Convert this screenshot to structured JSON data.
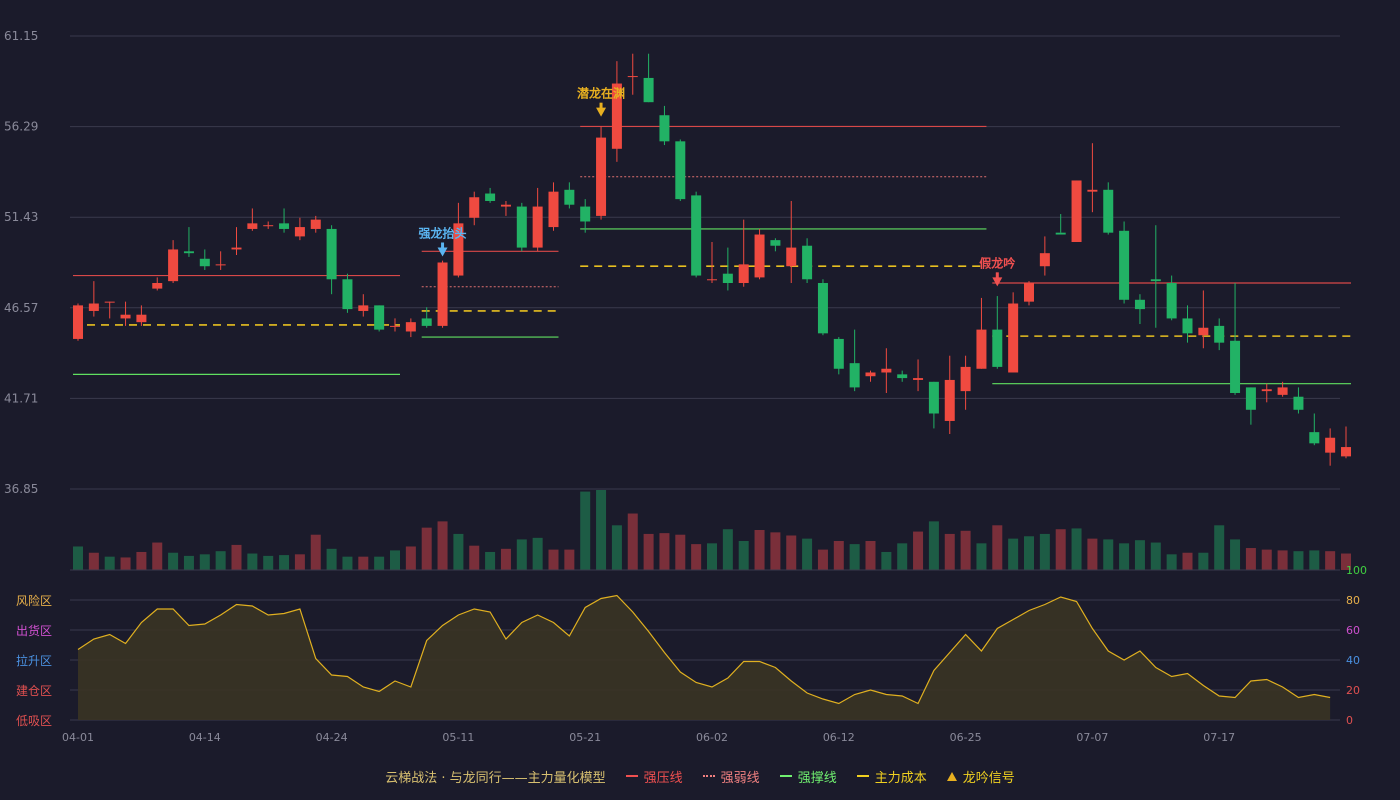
{
  "chart_data": {
    "type": "candlestick",
    "price_axis": {
      "ticks": [
        61.15,
        56.29,
        51.43,
        46.57,
        41.71,
        36.85
      ],
      "min": 36.85,
      "max": 61.15
    },
    "indicator_axis": {
      "ticks": [
        100,
        80,
        60,
        40,
        20,
        0
      ],
      "min": 0,
      "max": 100
    },
    "zones": [
      {
        "label": "风险区",
        "value": 80,
        "color": "#e8b04a"
      },
      {
        "label": "出货区",
        "value": 60,
        "color": "#d050d0"
      },
      {
        "label": "拉升区",
        "value": 40,
        "color": "#4a90e0"
      },
      {
        "label": "建仓区",
        "value": 20,
        "color": "#e05050"
      },
      {
        "label": "低吸区",
        "value": 0,
        "color": "#e05050"
      }
    ],
    "date_labels": [
      {
        "index": 0,
        "label": "04-01"
      },
      {
        "index": 8,
        "label": "04-14"
      },
      {
        "index": 16,
        "label": "04-24"
      },
      {
        "index": 24,
        "label": "05-11"
      },
      {
        "index": 32,
        "label": "05-21"
      },
      {
        "index": 40,
        "label": "06-02"
      },
      {
        "index": 48,
        "label": "06-12"
      },
      {
        "index": 56,
        "label": "06-25"
      },
      {
        "index": 64,
        "label": "07-07"
      },
      {
        "index": 72,
        "label": "07-17"
      }
    ],
    "candles": [
      [
        44.9,
        46.7,
        44.8,
        46.8
      ],
      [
        46.4,
        46.8,
        46.1,
        48.0
      ],
      [
        46.9,
        46.9,
        46.0,
        46.9
      ],
      [
        46.0,
        46.2,
        45.6,
        46.9
      ],
      [
        45.8,
        46.2,
        45.6,
        46.7
      ],
      [
        47.6,
        47.9,
        47.5,
        48.2
      ],
      [
        48.0,
        49.7,
        47.9,
        50.2
      ],
      [
        49.6,
        49.5,
        49.3,
        50.9
      ],
      [
        49.2,
        48.8,
        48.6,
        49.7
      ],
      [
        48.9,
        48.9,
        48.6,
        49.6
      ],
      [
        49.7,
        49.8,
        49.4,
        50.9
      ],
      [
        50.8,
        51.1,
        50.7,
        51.9
      ],
      [
        51.0,
        51.0,
        50.8,
        51.2
      ],
      [
        51.1,
        50.8,
        50.6,
        51.9
      ],
      [
        50.4,
        50.9,
        50.2,
        51.4
      ],
      [
        50.8,
        51.3,
        50.6,
        51.5
      ],
      [
        50.8,
        48.1,
        47.3,
        51.0
      ],
      [
        48.1,
        46.5,
        46.3,
        48.4
      ],
      [
        46.4,
        46.7,
        46.1,
        47.3
      ],
      [
        46.7,
        45.4,
        45.3,
        46.7
      ],
      [
        45.6,
        45.6,
        45.3,
        46.0
      ],
      [
        45.3,
        45.8,
        45.0,
        46.0
      ],
      [
        46.0,
        45.6,
        45.5,
        46.6
      ],
      [
        45.6,
        49.0,
        45.5,
        49.1
      ],
      [
        48.3,
        51.1,
        48.2,
        52.2
      ],
      [
        51.4,
        52.5,
        51.0,
        52.8
      ],
      [
        52.7,
        52.3,
        52.2,
        53.0
      ],
      [
        52.0,
        52.1,
        51.5,
        52.3
      ],
      [
        52.0,
        49.8,
        49.6,
        52.2
      ],
      [
        49.8,
        52.0,
        49.6,
        53.0
      ],
      [
        50.9,
        52.8,
        50.7,
        53.3
      ],
      [
        52.9,
        52.1,
        51.9,
        53.3
      ],
      [
        52.0,
        51.2,
        50.6,
        52.4
      ],
      [
        51.5,
        55.7,
        51.3,
        56.3
      ],
      [
        55.1,
        58.6,
        54.4,
        59.8
      ],
      [
        59.0,
        59.0,
        58.0,
        60.2
      ],
      [
        58.9,
        57.6,
        57.6,
        60.2
      ],
      [
        56.9,
        55.5,
        55.3,
        57.4
      ],
      [
        55.5,
        52.4,
        52.3,
        55.6
      ],
      [
        52.6,
        48.3,
        48.2,
        52.8
      ],
      [
        48.1,
        48.1,
        47.9,
        50.1
      ],
      [
        48.4,
        47.9,
        47.5,
        49.8
      ],
      [
        47.9,
        48.9,
        47.7,
        51.3
      ],
      [
        48.2,
        50.5,
        48.1,
        50.8
      ],
      [
        50.2,
        49.9,
        49.6,
        50.3
      ],
      [
        48.8,
        49.8,
        47.9,
        52.3
      ],
      [
        49.9,
        48.1,
        47.9,
        50.3
      ],
      [
        47.9,
        45.2,
        45.1,
        48.1
      ],
      [
        44.9,
        43.3,
        43.0,
        45.0
      ],
      [
        43.6,
        42.3,
        42.1,
        45.4
      ],
      [
        42.9,
        43.1,
        42.6,
        43.2
      ],
      [
        43.1,
        43.3,
        42.0,
        44.4
      ],
      [
        43.0,
        42.8,
        42.6,
        43.2
      ],
      [
        42.7,
        42.8,
        42.1,
        43.8
      ],
      [
        42.6,
        40.9,
        40.1,
        42.6
      ],
      [
        40.5,
        42.7,
        39.8,
        44.0
      ],
      [
        42.1,
        43.4,
        41.1,
        44.0
      ],
      [
        43.3,
        45.4,
        43.3,
        47.1
      ],
      [
        45.4,
        43.4,
        43.3,
        47.2
      ],
      [
        43.1,
        46.8,
        43.1,
        47.4
      ],
      [
        46.9,
        47.9,
        46.7,
        48.0
      ],
      [
        48.8,
        49.5,
        48.3,
        50.4
      ],
      [
        50.6,
        50.5,
        50.6,
        51.6
      ],
      [
        50.1,
        53.4,
        50.1,
        53.4
      ],
      [
        52.8,
        52.9,
        51.7,
        55.4
      ],
      [
        52.9,
        50.6,
        50.5,
        53.3
      ],
      [
        50.7,
        47.0,
        46.8,
        51.2
      ],
      [
        47.0,
        46.5,
        45.7,
        47.3
      ],
      [
        48.1,
        48.0,
        45.5,
        51.0
      ],
      [
        47.9,
        46.0,
        45.9,
        48.3
      ],
      [
        46.0,
        45.2,
        44.7,
        46.7
      ],
      [
        45.1,
        45.5,
        44.4,
        47.5
      ],
      [
        45.6,
        44.7,
        44.3,
        46.0
      ],
      [
        44.8,
        42.0,
        41.9,
        47.9
      ],
      [
        42.3,
        41.1,
        40.3,
        42.3
      ],
      [
        42.1,
        42.2,
        41.5,
        42.5
      ],
      [
        41.9,
        42.3,
        41.8,
        42.6
      ],
      [
        41.8,
        41.1,
        40.9,
        42.3
      ],
      [
        39.9,
        39.3,
        39.2,
        40.9
      ],
      [
        38.8,
        39.6,
        38.1,
        40.1
      ],
      [
        38.6,
        39.1,
        38.5,
        40.2
      ]
    ],
    "volume": [
      {
        "v": 30,
        "up": false
      },
      {
        "v": 22,
        "up": true
      },
      {
        "v": 17,
        "up": false
      },
      {
        "v": 16,
        "up": true
      },
      {
        "v": 23,
        "up": true
      },
      {
        "v": 35,
        "up": true
      },
      {
        "v": 22,
        "up": false
      },
      {
        "v": 18,
        "up": false
      },
      {
        "v": 20,
        "up": false
      },
      {
        "v": 24,
        "up": false
      },
      {
        "v": 32,
        "up": true
      },
      {
        "v": 21,
        "up": false
      },
      {
        "v": 18,
        "up": false
      },
      {
        "v": 19,
        "up": false
      },
      {
        "v": 20,
        "up": true
      },
      {
        "v": 45,
        "up": true
      },
      {
        "v": 27,
        "up": false
      },
      {
        "v": 17,
        "up": false
      },
      {
        "v": 17,
        "up": true
      },
      {
        "v": 17,
        "up": false
      },
      {
        "v": 25,
        "up": false
      },
      {
        "v": 30,
        "up": true
      },
      {
        "v": 54,
        "up": true
      },
      {
        "v": 62,
        "up": true
      },
      {
        "v": 46,
        "up": false
      },
      {
        "v": 31,
        "up": true
      },
      {
        "v": 23,
        "up": false
      },
      {
        "v": 27,
        "up": true
      },
      {
        "v": 39,
        "up": false
      },
      {
        "v": 41,
        "up": false
      },
      {
        "v": 26,
        "up": true
      },
      {
        "v": 26,
        "up": true
      },
      {
        "v": 100,
        "up": false
      },
      {
        "v": 102,
        "up": false
      },
      {
        "v": 57,
        "up": false
      },
      {
        "v": 72,
        "up": true
      },
      {
        "v": 46,
        "up": true
      },
      {
        "v": 47,
        "up": true
      },
      {
        "v": 45,
        "up": true
      },
      {
        "v": 33,
        "up": true
      },
      {
        "v": 34,
        "up": false
      },
      {
        "v": 52,
        "up": false
      },
      {
        "v": 37,
        "up": false
      },
      {
        "v": 51,
        "up": true
      },
      {
        "v": 48,
        "up": true
      },
      {
        "v": 44,
        "up": true
      },
      {
        "v": 40,
        "up": false
      },
      {
        "v": 26,
        "up": true
      },
      {
        "v": 37,
        "up": true
      },
      {
        "v": 33,
        "up": false
      },
      {
        "v": 37,
        "up": true
      },
      {
        "v": 23,
        "up": false
      },
      {
        "v": 34,
        "up": false
      },
      {
        "v": 49,
        "up": true
      },
      {
        "v": 62,
        "up": false
      },
      {
        "v": 46,
        "up": true
      },
      {
        "v": 50,
        "up": true
      },
      {
        "v": 34,
        "up": false
      },
      {
        "v": 57,
        "up": true
      },
      {
        "v": 40,
        "up": false
      },
      {
        "v": 43,
        "up": false
      },
      {
        "v": 46,
        "up": false
      },
      {
        "v": 52,
        "up": true
      },
      {
        "v": 53,
        "up": false
      },
      {
        "v": 40,
        "up": true
      },
      {
        "v": 39,
        "up": false
      },
      {
        "v": 34,
        "up": false
      },
      {
        "v": 38,
        "up": false
      },
      {
        "v": 35,
        "up": false
      },
      {
        "v": 20,
        "up": false
      },
      {
        "v": 22,
        "up": true
      },
      {
        "v": 22,
        "up": false
      },
      {
        "v": 57,
        "up": false
      },
      {
        "v": 39,
        "up": false
      },
      {
        "v": 28,
        "up": true
      },
      {
        "v": 26,
        "up": true
      },
      {
        "v": 25,
        "up": true
      },
      {
        "v": 24,
        "up": false
      },
      {
        "v": 25,
        "up": false
      },
      {
        "v": 24,
        "up": true
      },
      {
        "v": 21,
        "up": true
      }
    ],
    "indicator": [
      47,
      54,
      57,
      51,
      65,
      74,
      74,
      63,
      64,
      70,
      77,
      76,
      70,
      71,
      74,
      41,
      30,
      29,
      22,
      19,
      26,
      22,
      53,
      63,
      70,
      74,
      72,
      54,
      65,
      70,
      65,
      56,
      75,
      81,
      83,
      72,
      59,
      45,
      32,
      25,
      22,
      28,
      39,
      39,
      35,
      26,
      18,
      14,
      11,
      17,
      20,
      17,
      16,
      11,
      33,
      45,
      57,
      46,
      61,
      67,
      73,
      77,
      82,
      79,
      61,
      46,
      40,
      46,
      35,
      29,
      31,
      23,
      16,
      15,
      26,
      27,
      22,
      15,
      17,
      15
    ],
    "lines": [
      {
        "type": "resist",
        "from": 0,
        "to": 20,
        "price": 48.3
      },
      {
        "type": "support",
        "from": 0,
        "to": 20,
        "price": 43.0
      },
      {
        "type": "cost",
        "from": 0,
        "to": 20,
        "price": 45.65
      },
      {
        "type": "resist",
        "from": 22,
        "to": 30,
        "price": 49.6
      },
      {
        "type": "weak",
        "from": 22,
        "to": 30,
        "price": 47.7
      },
      {
        "type": "cost",
        "from": 22,
        "to": 30,
        "price": 46.4
      },
      {
        "type": "support",
        "from": 22,
        "to": 30,
        "price": 45.0
      },
      {
        "type": "resist",
        "from": 32,
        "to": 57,
        "price": 56.3
      },
      {
        "type": "weak",
        "from": 32,
        "to": 57,
        "price": 53.6
      },
      {
        "type": "support",
        "from": 32,
        "to": 57,
        "price": 50.8
      },
      {
        "type": "cost",
        "from": 32,
        "to": 57,
        "price": 48.8
      },
      {
        "type": "resist",
        "from": 58,
        "to": 80,
        "price": 47.9
      },
      {
        "type": "cost",
        "from": 58,
        "to": 80,
        "price": 45.05
      },
      {
        "type": "support",
        "from": 58,
        "to": 80,
        "price": 42.5
      }
    ],
    "signals": [
      {
        "index": 23,
        "label": "强龙抬头",
        "price": 49.0,
        "color": "#5ab4f0"
      },
      {
        "index": 33,
        "label": "潜龙在渊",
        "price": 56.5,
        "color": "#e8b020"
      },
      {
        "index": 58,
        "label": "假龙吟",
        "price": 47.4,
        "color": "#f05050"
      }
    ]
  },
  "legend": {
    "title": "云梯战法 · 与龙同行——主力量化模型",
    "items": [
      {
        "label": "强压线",
        "color": "#f05050",
        "style": "solid"
      },
      {
        "label": "强弱线",
        "color": "#f08080",
        "style": "dot"
      },
      {
        "label": "强撑线",
        "color": "#70f070",
        "style": "solid"
      },
      {
        "label": "主力成本",
        "color": "#f0d020",
        "style": "dash"
      },
      {
        "label": "龙吟信号",
        "color": "#e8b020",
        "style": "triangle"
      }
    ]
  },
  "colors": {
    "up": "#ef4a40",
    "down": "#22b265",
    "up_vol": "#7a2f3a",
    "down_vol": "#1d5c45",
    "grid": "#3a3a4c",
    "axis_text": "#8a8a9a",
    "indicator_line": "#e0b020"
  }
}
